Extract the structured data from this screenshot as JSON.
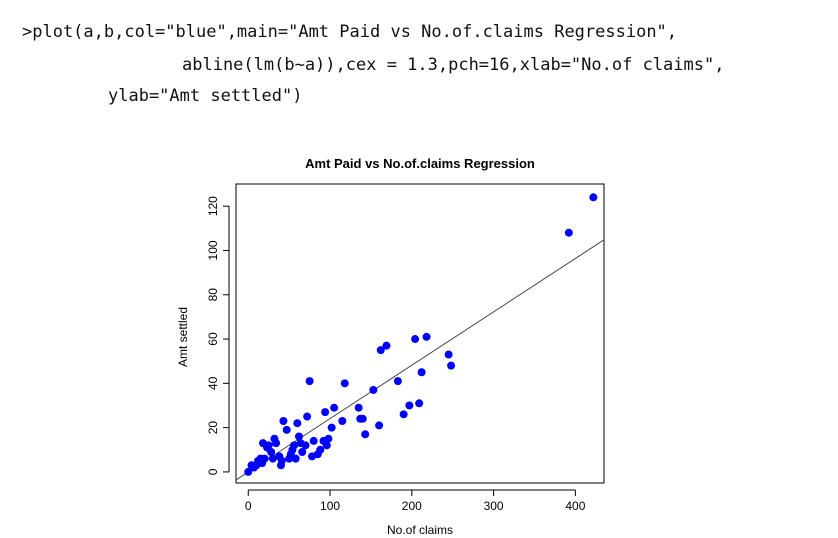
{
  "code": {
    "line1": ">plot(a,b,col=\"blue\",main=\"Amt Paid vs No.of.claims Regression\",",
    "line2": "abline(lm(b~a)),cex = 1.3,pch=16,xlab=\"No.of claims\",",
    "line3": "ylab=\"Amt settled\")"
  },
  "chart_data": {
    "type": "scatter",
    "title": "Amt Paid vs No.of.claims Regression",
    "xlabel": "No.of claims",
    "ylabel": "Amt settled",
    "xlim": [
      -15,
      435
    ],
    "ylim": [
      -5,
      130
    ],
    "x_ticks": [
      0,
      100,
      200,
      300,
      400
    ],
    "y_ticks": [
      0,
      20,
      40,
      60,
      80,
      100,
      120
    ],
    "grid": false,
    "point_color": "#0000ff",
    "line_color": "#444444",
    "regression_line": {
      "x": [
        0,
        440
      ],
      "y": [
        0,
        106
      ]
    },
    "points": [
      {
        "x": 0,
        "y": 0
      },
      {
        "x": 4,
        "y": 3
      },
      {
        "x": 7,
        "y": 2
      },
      {
        "x": 10,
        "y": 3
      },
      {
        "x": 12,
        "y": 5
      },
      {
        "x": 15,
        "y": 6
      },
      {
        "x": 17,
        "y": 4
      },
      {
        "x": 18,
        "y": 13
      },
      {
        "x": 20,
        "y": 6
      },
      {
        "x": 23,
        "y": 11
      },
      {
        "x": 25,
        "y": 12
      },
      {
        "x": 28,
        "y": 9
      },
      {
        "x": 30,
        "y": 6
      },
      {
        "x": 32,
        "y": 15
      },
      {
        "x": 34,
        "y": 13
      },
      {
        "x": 38,
        "y": 7
      },
      {
        "x": 40,
        "y": 3
      },
      {
        "x": 41,
        "y": 5
      },
      {
        "x": 43,
        "y": 23
      },
      {
        "x": 47,
        "y": 19
      },
      {
        "x": 50,
        "y": 6
      },
      {
        "x": 52,
        "y": 8
      },
      {
        "x": 54,
        "y": 10
      },
      {
        "x": 56,
        "y": 12
      },
      {
        "x": 58,
        "y": 6
      },
      {
        "x": 60,
        "y": 22
      },
      {
        "x": 62,
        "y": 16
      },
      {
        "x": 64,
        "y": 13
      },
      {
        "x": 66,
        "y": 9
      },
      {
        "x": 70,
        "y": 12
      },
      {
        "x": 72,
        "y": 25
      },
      {
        "x": 75,
        "y": 41
      },
      {
        "x": 78,
        "y": 7
      },
      {
        "x": 80,
        "y": 14
      },
      {
        "x": 85,
        "y": 8
      },
      {
        "x": 88,
        "y": 10
      },
      {
        "x": 92,
        "y": 14
      },
      {
        "x": 94,
        "y": 27
      },
      {
        "x": 96,
        "y": 12
      },
      {
        "x": 98,
        "y": 15
      },
      {
        "x": 102,
        "y": 20
      },
      {
        "x": 105,
        "y": 29
      },
      {
        "x": 115,
        "y": 23
      },
      {
        "x": 118,
        "y": 40
      },
      {
        "x": 135,
        "y": 29
      },
      {
        "x": 137,
        "y": 24
      },
      {
        "x": 140,
        "y": 24
      },
      {
        "x": 143,
        "y": 17
      },
      {
        "x": 153,
        "y": 37
      },
      {
        "x": 160,
        "y": 21
      },
      {
        "x": 162,
        "y": 55
      },
      {
        "x": 169,
        "y": 57
      },
      {
        "x": 183,
        "y": 41
      },
      {
        "x": 190,
        "y": 26
      },
      {
        "x": 197,
        "y": 30
      },
      {
        "x": 204,
        "y": 60
      },
      {
        "x": 209,
        "y": 31
      },
      {
        "x": 212,
        "y": 45
      },
      {
        "x": 218,
        "y": 61
      },
      {
        "x": 245,
        "y": 53
      },
      {
        "x": 248,
        "y": 48
      },
      {
        "x": 392,
        "y": 108
      },
      {
        "x": 422,
        "y": 124
      }
    ]
  }
}
